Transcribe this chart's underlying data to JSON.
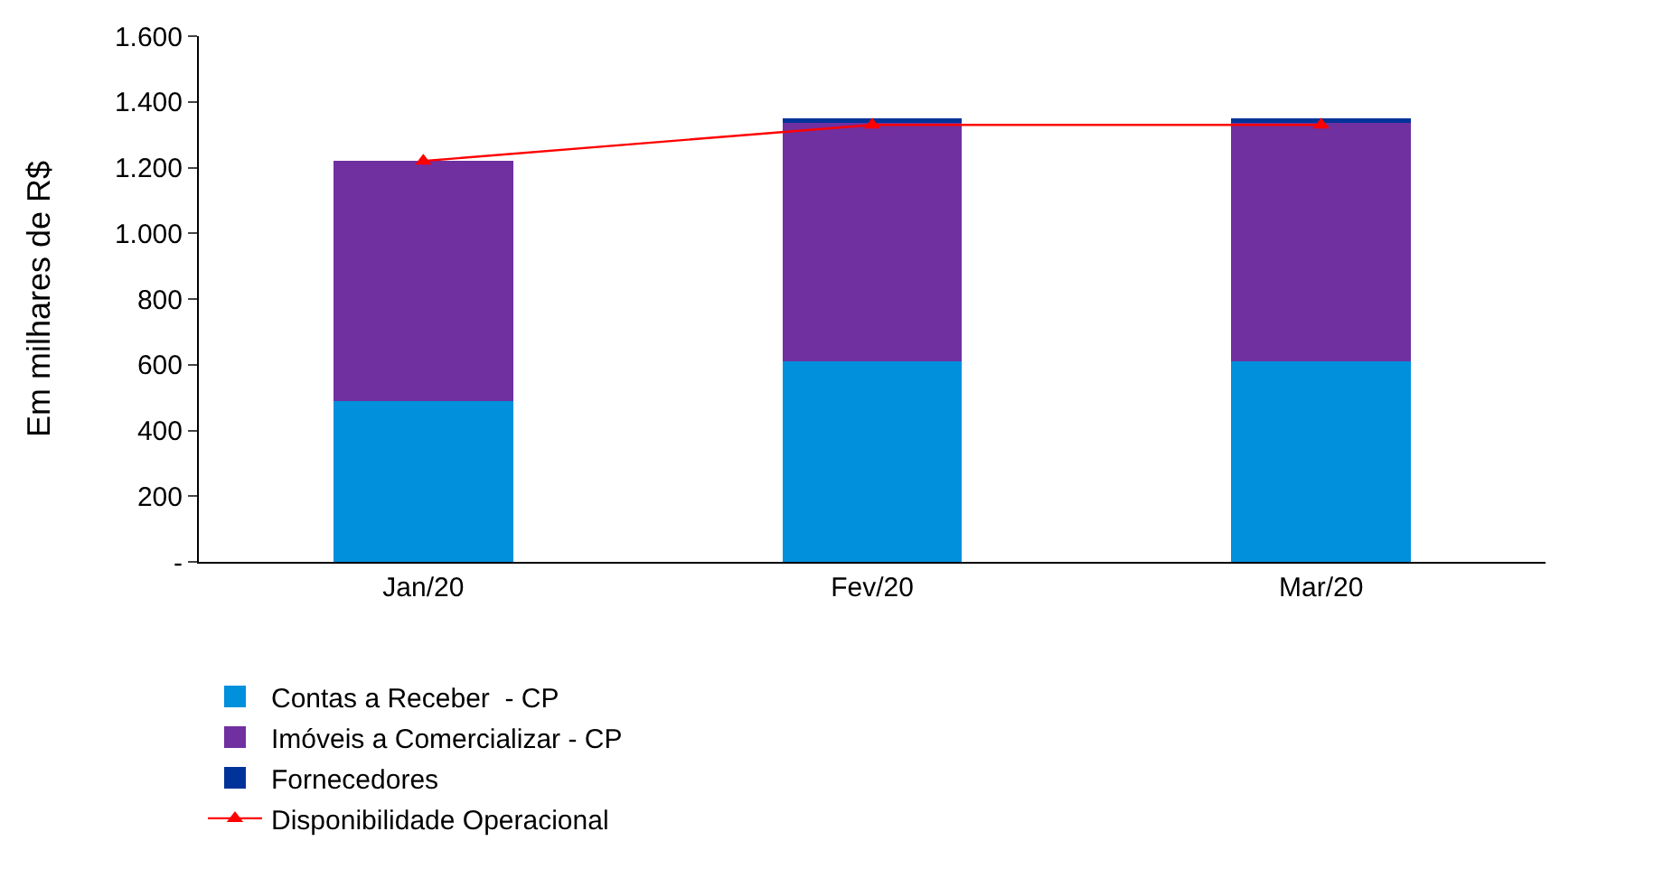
{
  "chart_data": {
    "type": "bar",
    "stacked": true,
    "ylabel": "Em milhares de R$",
    "categories": [
      "Jan/20",
      "Fev/20",
      "Mar/20"
    ],
    "series": [
      {
        "name": "Contas a Receber  - CP",
        "color": "#0090dc",
        "values": [
          490,
          610,
          610
        ]
      },
      {
        "name": "Imóveis a Comercializar - CP",
        "color": "#7030a0",
        "values": [
          730,
          725,
          725
        ]
      },
      {
        "name": "Fornecedores",
        "color": "#003399",
        "values": [
          null,
          15,
          15
        ]
      },
      {
        "name": "Disponibilidade Operacional",
        "type": "line",
        "color": "#ff0000",
        "marker": "triangle",
        "values": [
          1220,
          1330,
          1330
        ]
      }
    ],
    "ylim": [
      0,
      1600
    ],
    "yticks": [
      {
        "value": 0,
        "label": "-"
      },
      {
        "value": 200,
        "label": "200"
      },
      {
        "value": 400,
        "label": "400"
      },
      {
        "value": 600,
        "label": "600"
      },
      {
        "value": 800,
        "label": "800"
      },
      {
        "value": 1000,
        "label": "1.000"
      },
      {
        "value": 1200,
        "label": "1.200"
      },
      {
        "value": 1400,
        "label": "1.400"
      },
      {
        "value": 1600,
        "label": "1.600"
      }
    ],
    "grid": false,
    "legend": "bottom"
  }
}
